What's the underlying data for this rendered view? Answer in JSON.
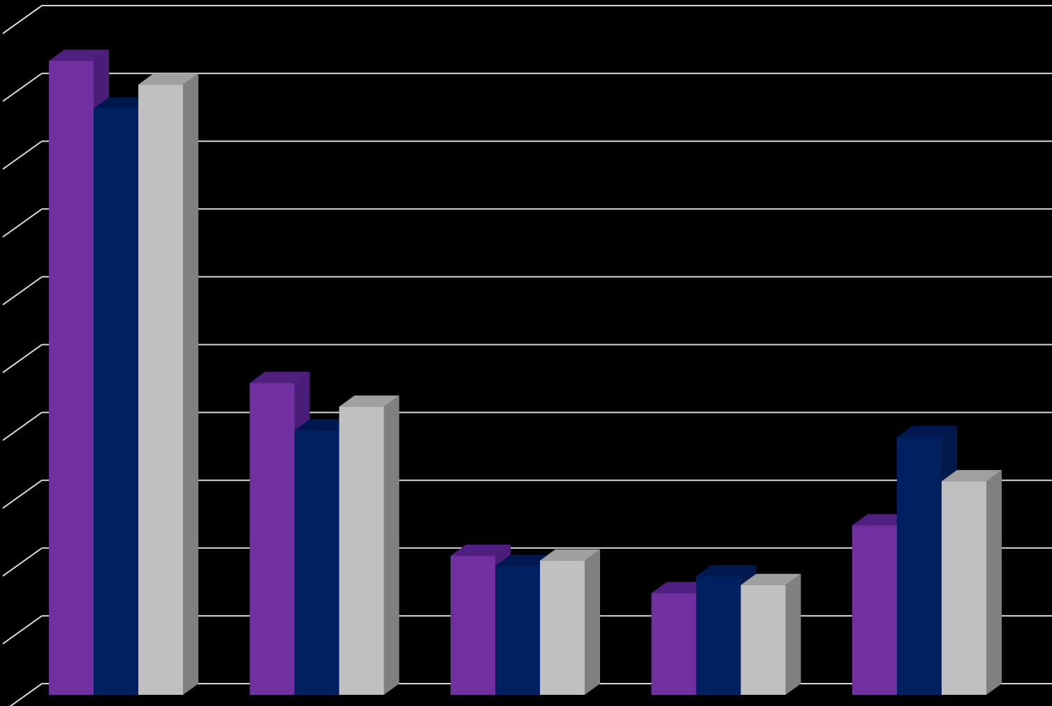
{
  "chart_data": {
    "type": "bar",
    "style": "3d-clustered",
    "title": "",
    "xlabel": "",
    "ylabel": "",
    "categories": [
      "",
      "",
      "",
      "",
      ""
    ],
    "ylim": [
      0,
      10
    ],
    "grid": true,
    "legend": "none",
    "series": [
      {
        "color": "#7030A0",
        "top_color": "#4F2080",
        "side_color": "#4A1E78",
        "values": [
          9.35,
          4.6,
          2.05,
          1.5,
          2.5
        ]
      },
      {
        "color": "#002060",
        "top_color": "#001850",
        "side_color": "#001A4C",
        "values": [
          8.65,
          3.9,
          1.9,
          1.75,
          3.8
        ]
      },
      {
        "color": "#C0C0C0",
        "top_color": "#A0A0A0",
        "side_color": "#808080",
        "values": [
          9.0,
          4.25,
          1.98,
          1.62,
          3.15
        ]
      }
    ],
    "colors": {
      "background": "#000000",
      "gridline": "#D9D9D9"
    }
  }
}
